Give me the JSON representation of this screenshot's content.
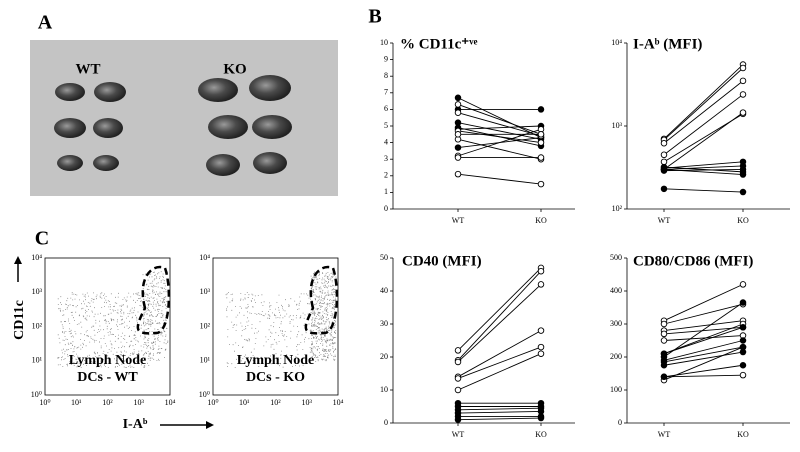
{
  "panels": {
    "a": "A",
    "b": "B",
    "c": "C"
  },
  "photo": {
    "wt": "WT",
    "ko": "KO"
  },
  "flow": {
    "y_axis": "CD11c",
    "x_axis": "I-Aᵇ",
    "ticks": [
      "10⁰",
      "10¹",
      "10²",
      "10³",
      "10⁴"
    ],
    "plots": [
      {
        "line1": "Lymph Node",
        "line2": "DCs - WT"
      },
      {
        "line1": "Lymph Node",
        "line2": "DCs - KO"
      }
    ]
  },
  "chart_data": [
    {
      "type": "line",
      "title": "% CD11c⁺ᵛᵉ",
      "categories": [
        "WT",
        "KO"
      ],
      "ylim": [
        0,
        10
      ],
      "yticks": [
        0,
        1,
        2,
        3,
        4,
        5,
        6,
        7,
        8,
        9,
        10
      ],
      "series": [
        {
          "marker": "filled",
          "color": "#000000",
          "values": [
            6.7,
            4.3
          ]
        },
        {
          "marker": "filled",
          "color": "#000000",
          "values": [
            6.0,
            6.0
          ]
        },
        {
          "marker": "filled",
          "color": "#000000",
          "values": [
            5.2,
            4.2
          ]
        },
        {
          "marker": "filled",
          "color": "#000000",
          "values": [
            4.8,
            5.0
          ]
        },
        {
          "marker": "filled",
          "color": "#000000",
          "values": [
            3.7,
            4.3
          ]
        },
        {
          "marker": "filled",
          "color": "#000000",
          "values": [
            4.9,
            3.8
          ]
        },
        {
          "marker": "open",
          "color": "#000000",
          "values": [
            6.3,
            4.5
          ]
        },
        {
          "marker": "open",
          "color": "#000000",
          "values": [
            5.8,
            4.4
          ]
        },
        {
          "marker": "open",
          "color": "#000000",
          "values": [
            4.7,
            4.0
          ]
        },
        {
          "marker": "open",
          "color": "#000000",
          "values": [
            4.2,
            3.0
          ]
        },
        {
          "marker": "open",
          "color": "#000000",
          "values": [
            3.2,
            4.8
          ]
        },
        {
          "marker": "open",
          "color": "#000000",
          "values": [
            3.1,
            3.1
          ]
        },
        {
          "marker": "open",
          "color": "#000000",
          "values": [
            2.1,
            1.5
          ]
        },
        {
          "marker": "open",
          "color": "#000000",
          "values": [
            4.5,
            4.5
          ]
        }
      ]
    },
    {
      "type": "line",
      "title": "I-Aᵇ (MFI)",
      "categories": [
        "WT",
        "KO"
      ],
      "ylog": true,
      "ylim": [
        100,
        10000
      ],
      "yticks": [
        {
          "value": 100,
          "label": "10²"
        },
        {
          "value": 1000,
          "label": "10³"
        },
        {
          "value": 10000,
          "label": "10⁴"
        }
      ],
      "series": [
        {
          "marker": "open",
          "color": "#000000",
          "values": [
            700,
            5500
          ]
        },
        {
          "marker": "open",
          "color": "#000000",
          "values": [
            680,
            5000
          ]
        },
        {
          "marker": "open",
          "color": "#000000",
          "values": [
            620,
            3500
          ]
        },
        {
          "marker": "open",
          "color": "#000000",
          "values": [
            450,
            2400
          ]
        },
        {
          "marker": "open",
          "color": "#000000",
          "values": [
            370,
            1400
          ]
        },
        {
          "marker": "open",
          "color": "#000000",
          "values": [
            300,
            1450
          ]
        },
        {
          "marker": "filled",
          "color": "#000000",
          "values": [
            310,
            370
          ]
        },
        {
          "marker": "filled",
          "color": "#000000",
          "values": [
            300,
            330
          ]
        },
        {
          "marker": "filled",
          "color": "#000000",
          "values": [
            290,
            300
          ]
        },
        {
          "marker": "filled",
          "color": "#000000",
          "values": [
            320,
            280
          ]
        },
        {
          "marker": "filled",
          "color": "#000000",
          "values": [
            300,
            260
          ]
        },
        {
          "marker": "filled",
          "color": "#000000",
          "values": [
            175,
            160
          ]
        }
      ]
    },
    {
      "type": "line",
      "title": "CD40 (MFI)",
      "categories": [
        "WT",
        "KO"
      ],
      "ylim": [
        0,
        50
      ],
      "yticks": [
        0,
        10,
        20,
        30,
        40,
        50
      ],
      "series": [
        {
          "marker": "open",
          "color": "#000000",
          "values": [
            22,
            47
          ]
        },
        {
          "marker": "open",
          "color": "#000000",
          "values": [
            19,
            46
          ]
        },
        {
          "marker": "open",
          "color": "#000000",
          "values": [
            18.5,
            42
          ]
        },
        {
          "marker": "open",
          "color": "#000000",
          "values": [
            14,
            28
          ]
        },
        {
          "marker": "open",
          "color": "#000000",
          "values": [
            13.5,
            23
          ]
        },
        {
          "marker": "open",
          "color": "#000000",
          "values": [
            10,
            21
          ]
        },
        {
          "marker": "filled",
          "color": "#000000",
          "values": [
            6,
            6
          ]
        },
        {
          "marker": "filled",
          "color": "#000000",
          "values": [
            5,
            5
          ]
        },
        {
          "marker": "filled",
          "color": "#000000",
          "values": [
            4,
            4.5
          ]
        },
        {
          "marker": "filled",
          "color": "#000000",
          "values": [
            3,
            3.5
          ]
        },
        {
          "marker": "filled",
          "color": "#000000",
          "values": [
            2,
            2
          ]
        },
        {
          "marker": "filled",
          "color": "#000000",
          "values": [
            1,
            1.5
          ]
        }
      ]
    },
    {
      "type": "line",
      "title": "CD80/CD86 (MFI)",
      "categories": [
        "WT",
        "KO"
      ],
      "ylim": [
        0,
        500
      ],
      "yticks": [
        0,
        100,
        200,
        300,
        400,
        500
      ],
      "series": [
        {
          "marker": "open",
          "color": "#000000",
          "values": [
            310,
            420
          ]
        },
        {
          "marker": "open",
          "color": "#000000",
          "values": [
            300,
            360
          ]
        },
        {
          "marker": "open",
          "color": "#000000",
          "values": [
            280,
            310
          ]
        },
        {
          "marker": "open",
          "color": "#000000",
          "values": [
            270,
            290
          ]
        },
        {
          "marker": "open",
          "color": "#000000",
          "values": [
            250,
            265
          ]
        },
        {
          "marker": "open",
          "color": "#000000",
          "values": [
            210,
            300
          ]
        },
        {
          "marker": "open",
          "color": "#000000",
          "values": [
            140,
            145
          ]
        },
        {
          "marker": "open",
          "color": "#000000",
          "values": [
            130,
            230
          ]
        },
        {
          "marker": "filled",
          "color": "#000000",
          "values": [
            200,
            365
          ]
        },
        {
          "marker": "filled",
          "color": "#000000",
          "values": [
            190,
            250
          ]
        },
        {
          "marker": "filled",
          "color": "#000000",
          "values": [
            185,
            230
          ]
        },
        {
          "marker": "filled",
          "color": "#000000",
          "values": [
            175,
            215
          ]
        },
        {
          "marker": "filled",
          "color": "#000000",
          "values": [
            140,
            175
          ]
        },
        {
          "marker": "filled",
          "color": "#000000",
          "values": [
            210,
            290
          ]
        }
      ]
    }
  ]
}
